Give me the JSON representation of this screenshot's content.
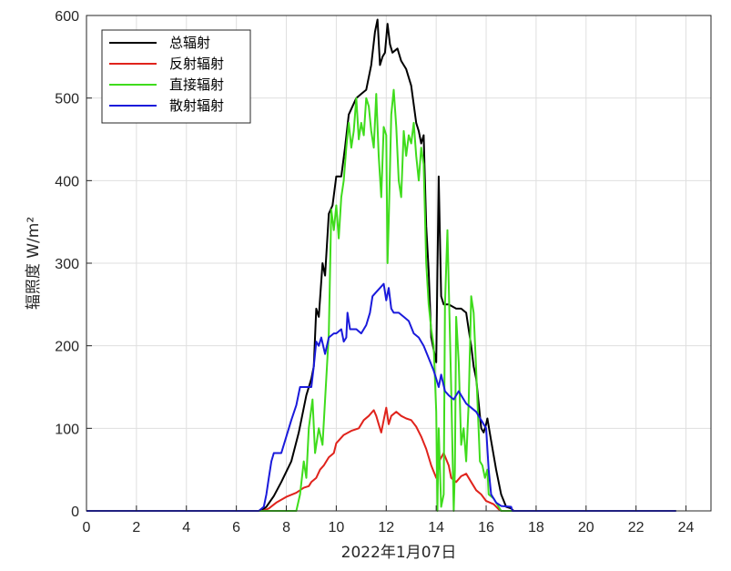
{
  "chart_data": {
    "type": "line",
    "title": "",
    "xlabel": "2022年1月07日",
    "ylabel": "辐照度 W/m²",
    "xlim": [
      0,
      25
    ],
    "ylim": [
      0,
      600
    ],
    "xticks": [
      0,
      2,
      4,
      6,
      8,
      10,
      12,
      14,
      16,
      18,
      20,
      22,
      24
    ],
    "yticks": [
      0,
      100,
      200,
      300,
      400,
      500,
      600
    ],
    "grid": true,
    "legend_position": "top-left",
    "series": [
      {
        "name": "总辐射",
        "color": "#000000",
        "points": [
          [
            0,
            0
          ],
          [
            7.0,
            0
          ],
          [
            7.2,
            5
          ],
          [
            7.5,
            18
          ],
          [
            7.8,
            35
          ],
          [
            8.2,
            60
          ],
          [
            8.5,
            95
          ],
          [
            8.8,
            140
          ],
          [
            9.0,
            160
          ],
          [
            9.1,
            175
          ],
          [
            9.2,
            245
          ],
          [
            9.3,
            235
          ],
          [
            9.45,
            300
          ],
          [
            9.55,
            285
          ],
          [
            9.7,
            360
          ],
          [
            9.85,
            370
          ],
          [
            10.0,
            405
          ],
          [
            10.2,
            405
          ],
          [
            10.35,
            440
          ],
          [
            10.5,
            480
          ],
          [
            10.8,
            500
          ],
          [
            11.0,
            505
          ],
          [
            11.2,
            510
          ],
          [
            11.4,
            540
          ],
          [
            11.55,
            580
          ],
          [
            11.65,
            595
          ],
          [
            11.75,
            540
          ],
          [
            11.85,
            550
          ],
          [
            11.95,
            555
          ],
          [
            12.05,
            590
          ],
          [
            12.15,
            565
          ],
          [
            12.25,
            555
          ],
          [
            12.45,
            560
          ],
          [
            12.6,
            545
          ],
          [
            12.8,
            535
          ],
          [
            13.0,
            515
          ],
          [
            13.2,
            470
          ],
          [
            13.3,
            460
          ],
          [
            13.4,
            445
          ],
          [
            13.5,
            455
          ],
          [
            13.6,
            345
          ],
          [
            13.7,
            290
          ],
          [
            13.8,
            210
          ],
          [
            13.9,
            195
          ],
          [
            14.0,
            180
          ],
          [
            14.1,
            405
          ],
          [
            14.2,
            260
          ],
          [
            14.3,
            250
          ],
          [
            14.5,
            250
          ],
          [
            14.8,
            245
          ],
          [
            15.0,
            245
          ],
          [
            15.2,
            240
          ],
          [
            15.3,
            220
          ],
          [
            15.4,
            200
          ],
          [
            15.5,
            175
          ],
          [
            15.6,
            160
          ],
          [
            15.8,
            100
          ],
          [
            15.9,
            95
          ],
          [
            16.0,
            105
          ],
          [
            16.05,
            112
          ],
          [
            16.2,
            85
          ],
          [
            16.4,
            50
          ],
          [
            16.6,
            20
          ],
          [
            16.8,
            5
          ],
          [
            17.0,
            3
          ],
          [
            17.1,
            0
          ],
          [
            23.6,
            0
          ]
        ]
      },
      {
        "name": "反射辐射",
        "color": "#e0231c",
        "points": [
          [
            0,
            0
          ],
          [
            7.05,
            0
          ],
          [
            7.3,
            3
          ],
          [
            7.6,
            10
          ],
          [
            8.0,
            17
          ],
          [
            8.4,
            22
          ],
          [
            8.7,
            28
          ],
          [
            8.9,
            30
          ],
          [
            9.0,
            35
          ],
          [
            9.2,
            40
          ],
          [
            9.35,
            50
          ],
          [
            9.5,
            55
          ],
          [
            9.7,
            65
          ],
          [
            9.9,
            70
          ],
          [
            10.0,
            82
          ],
          [
            10.3,
            92
          ],
          [
            10.6,
            97
          ],
          [
            10.9,
            100
          ],
          [
            11.1,
            110
          ],
          [
            11.3,
            115
          ],
          [
            11.5,
            122
          ],
          [
            11.6,
            115
          ],
          [
            11.7,
            105
          ],
          [
            11.8,
            95
          ],
          [
            11.9,
            110
          ],
          [
            12.0,
            125
          ],
          [
            12.1,
            105
          ],
          [
            12.2,
            115
          ],
          [
            12.4,
            120
          ],
          [
            12.6,
            115
          ],
          [
            12.8,
            112
          ],
          [
            13.0,
            110
          ],
          [
            13.2,
            102
          ],
          [
            13.4,
            90
          ],
          [
            13.6,
            75
          ],
          [
            13.8,
            55
          ],
          [
            14.0,
            40
          ],
          [
            14.15,
            62
          ],
          [
            14.3,
            70
          ],
          [
            14.5,
            55
          ],
          [
            14.6,
            40
          ],
          [
            14.8,
            35
          ],
          [
            15.0,
            42
          ],
          [
            15.2,
            45
          ],
          [
            15.4,
            35
          ],
          [
            15.6,
            25
          ],
          [
            15.8,
            20
          ],
          [
            16.0,
            12
          ],
          [
            16.3,
            8
          ],
          [
            16.5,
            2
          ],
          [
            16.6,
            0
          ],
          [
            23.6,
            0
          ]
        ]
      },
      {
        "name": "直接辐射",
        "color": "#3fdc1c",
        "points": [
          [
            0,
            0
          ],
          [
            8.2,
            0
          ],
          [
            8.4,
            0
          ],
          [
            8.55,
            20
          ],
          [
            8.7,
            60
          ],
          [
            8.8,
            40
          ],
          [
            8.9,
            100
          ],
          [
            9.05,
            135
          ],
          [
            9.15,
            70
          ],
          [
            9.3,
            100
          ],
          [
            9.45,
            80
          ],
          [
            9.6,
            160
          ],
          [
            9.7,
            215
          ],
          [
            9.8,
            365
          ],
          [
            9.9,
            340
          ],
          [
            10.0,
            370
          ],
          [
            10.1,
            330
          ],
          [
            10.2,
            380
          ],
          [
            10.3,
            400
          ],
          [
            10.4,
            440
          ],
          [
            10.5,
            470
          ],
          [
            10.6,
            440
          ],
          [
            10.7,
            460
          ],
          [
            10.8,
            500
          ],
          [
            10.9,
            450
          ],
          [
            11.0,
            470
          ],
          [
            11.1,
            455
          ],
          [
            11.2,
            500
          ],
          [
            11.3,
            490
          ],
          [
            11.4,
            460
          ],
          [
            11.5,
            440
          ],
          [
            11.6,
            505
          ],
          [
            11.7,
            430
          ],
          [
            11.8,
            380
          ],
          [
            11.9,
            465
          ],
          [
            12.0,
            455
          ],
          [
            12.05,
            300
          ],
          [
            12.1,
            350
          ],
          [
            12.2,
            480
          ],
          [
            12.3,
            510
          ],
          [
            12.4,
            465
          ],
          [
            12.5,
            400
          ],
          [
            12.6,
            380
          ],
          [
            12.7,
            460
          ],
          [
            12.8,
            430
          ],
          [
            12.9,
            455
          ],
          [
            13.0,
            445
          ],
          [
            13.1,
            470
          ],
          [
            13.2,
            430
          ],
          [
            13.3,
            400
          ],
          [
            13.4,
            440
          ],
          [
            13.5,
            420
          ],
          [
            13.6,
            300
          ],
          [
            13.7,
            250
          ],
          [
            13.8,
            220
          ],
          [
            13.9,
            200
          ],
          [
            14.0,
            120
          ],
          [
            14.05,
            0
          ],
          [
            14.1,
            100
          ],
          [
            14.2,
            5
          ],
          [
            14.3,
            20
          ],
          [
            14.35,
            250
          ],
          [
            14.45,
            340
          ],
          [
            14.6,
            150
          ],
          [
            14.7,
            0
          ],
          [
            14.75,
            50
          ],
          [
            14.8,
            235
          ],
          [
            14.9,
            180
          ],
          [
            15.0,
            80
          ],
          [
            15.1,
            100
          ],
          [
            15.2,
            60
          ],
          [
            15.3,
            130
          ],
          [
            15.4,
            260
          ],
          [
            15.5,
            240
          ],
          [
            15.6,
            170
          ],
          [
            15.75,
            60
          ],
          [
            15.85,
            55
          ],
          [
            15.95,
            40
          ],
          [
            16.05,
            50
          ],
          [
            16.1,
            20
          ],
          [
            16.3,
            15
          ],
          [
            16.5,
            5
          ],
          [
            16.6,
            0
          ],
          [
            23.6,
            0
          ]
        ]
      },
      {
        "name": "散射辐射",
        "color": "#1a1adb",
        "points": [
          [
            0,
            0
          ],
          [
            6.9,
            0
          ],
          [
            7.1,
            5
          ],
          [
            7.2,
            20
          ],
          [
            7.3,
            40
          ],
          [
            7.4,
            60
          ],
          [
            7.5,
            70
          ],
          [
            7.8,
            70
          ],
          [
            8.0,
            90
          ],
          [
            8.2,
            110
          ],
          [
            8.4,
            128
          ],
          [
            8.55,
            150
          ],
          [
            9.0,
            150
          ],
          [
            9.1,
            175
          ],
          [
            9.2,
            205
          ],
          [
            9.3,
            200
          ],
          [
            9.4,
            210
          ],
          [
            9.55,
            190
          ],
          [
            9.7,
            210
          ],
          [
            9.9,
            215
          ],
          [
            10.0,
            215
          ],
          [
            10.2,
            220
          ],
          [
            10.3,
            205
          ],
          [
            10.4,
            210
          ],
          [
            10.45,
            240
          ],
          [
            10.55,
            220
          ],
          [
            10.8,
            220
          ],
          [
            11.0,
            215
          ],
          [
            11.2,
            225
          ],
          [
            11.35,
            240
          ],
          [
            11.45,
            260
          ],
          [
            11.6,
            265
          ],
          [
            11.75,
            270
          ],
          [
            11.9,
            275
          ],
          [
            12.0,
            255
          ],
          [
            12.1,
            270
          ],
          [
            12.2,
            245
          ],
          [
            12.3,
            240
          ],
          [
            12.5,
            240
          ],
          [
            12.7,
            235
          ],
          [
            12.9,
            230
          ],
          [
            13.1,
            215
          ],
          [
            13.3,
            210
          ],
          [
            13.5,
            200
          ],
          [
            13.7,
            185
          ],
          [
            13.9,
            170
          ],
          [
            14.0,
            160
          ],
          [
            14.1,
            150
          ],
          [
            14.2,
            165
          ],
          [
            14.35,
            145
          ],
          [
            14.5,
            140
          ],
          [
            14.7,
            135
          ],
          [
            14.9,
            145
          ],
          [
            15.0,
            140
          ],
          [
            15.2,
            130
          ],
          [
            15.4,
            125
          ],
          [
            15.6,
            120
          ],
          [
            15.8,
            110
          ],
          [
            16.0,
            100
          ],
          [
            16.1,
            50
          ],
          [
            16.2,
            20
          ],
          [
            16.4,
            10
          ],
          [
            16.6,
            6
          ],
          [
            17.0,
            5
          ],
          [
            17.05,
            0
          ],
          [
            23.6,
            0
          ]
        ]
      }
    ]
  }
}
